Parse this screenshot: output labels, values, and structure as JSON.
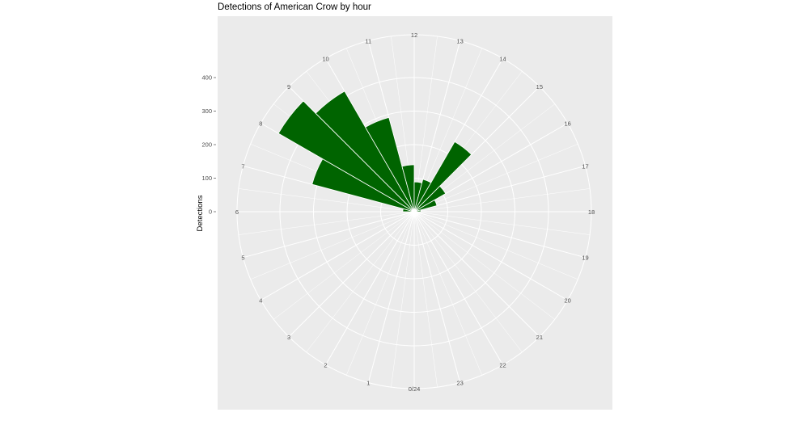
{
  "chart_data": {
    "type": "bar",
    "coord": "polar",
    "title": "Detections of American Crow by hour",
    "xlabel": "",
    "ylabel": "Detections",
    "x_tick_labels": [
      "0/24",
      "1",
      "2",
      "3",
      "4",
      "5",
      "6",
      "7",
      "8",
      "9",
      "10",
      "11",
      "12",
      "13",
      "14",
      "15",
      "16",
      "17",
      "18",
      "19",
      "20",
      "21",
      "22",
      "23"
    ],
    "y_ticks": [
      0,
      100,
      200,
      300,
      400
    ],
    "ylim": [
      0,
      530
    ],
    "hours": [
      0,
      1,
      2,
      3,
      4,
      5,
      6,
      7,
      8,
      9,
      10,
      11,
      12,
      13,
      14,
      15,
      16,
      17,
      18,
      19,
      20,
      21,
      22,
      23
    ],
    "values": [
      0,
      0,
      0,
      0,
      0,
      0,
      34,
      315,
      467,
      415,
      291,
      140,
      89,
      100,
      241,
      108,
      70,
      20,
      0,
      0,
      0,
      0,
      0,
      0
    ],
    "bar_color": "#006400",
    "panel_color": "#EBEBEB",
    "grid": true
  }
}
